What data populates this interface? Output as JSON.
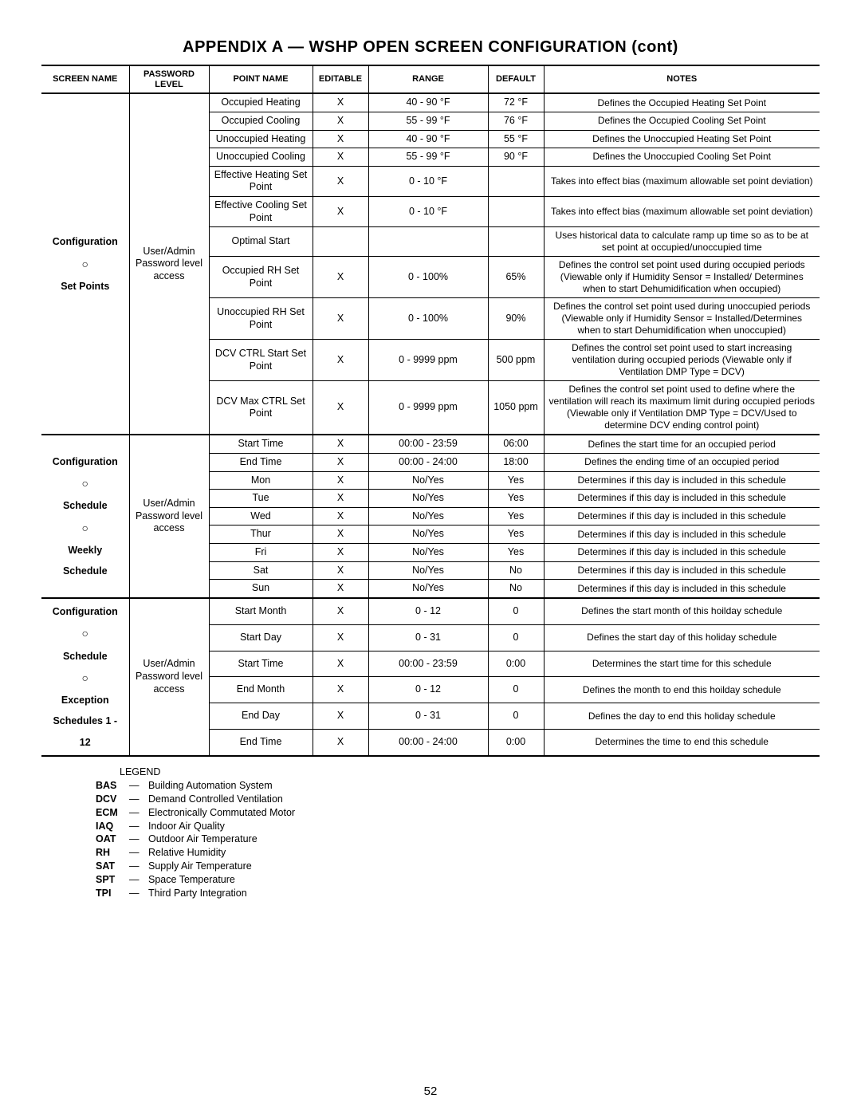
{
  "title": "APPENDIX A — WSHP OPEN SCREEN CONFIGURATION (cont)",
  "page_number": "52",
  "columns": {
    "screen_name": "Screen Name",
    "password_level": "Password Level",
    "point_name": "Point Name",
    "editable": "Editable",
    "range": "Range",
    "default": "Default",
    "notes": "Notes"
  },
  "degree_unit": "°F",
  "groups": [
    {
      "id": "setpoints",
      "screen_name_lines": [
        "Configuration",
        "○",
        "Set Points"
      ],
      "password_level": "User/Admin Password level access",
      "rows": [
        {
          "point_name": "Occupied Heating",
          "editable": "X",
          "range": "40 - 90  °F",
          "default": "72  °F",
          "notes": "Defines the Occupied Heating Set Point"
        },
        {
          "point_name": "Occupied Cooling",
          "editable": "X",
          "range": "55 - 99  °F",
          "default": "76  °F",
          "notes": "Defines the Occupied Cooling Set Point"
        },
        {
          "point_name": "Unoccupied Heating",
          "editable": "X",
          "range": "40 - 90  °F",
          "default": "55  °F",
          "notes": "Defines the Unoccupied Heating Set Point"
        },
        {
          "point_name": "Unoccupied Cooling",
          "editable": "X",
          "range": "55 - 99  °F",
          "default": "90  °F",
          "notes": "Defines the Unoccupied Cooling Set Point"
        },
        {
          "point_name": "Effective Heating Set Point",
          "editable": "X",
          "range": "0 - 10  °F",
          "default": "",
          "notes": "Takes into effect bias (maximum allowable set point deviation)"
        },
        {
          "point_name": "Effective Cooling Set Point",
          "editable": "X",
          "range": "0 - 10  °F",
          "default": "",
          "notes": "Takes into effect bias (maximum allowable set point deviation)"
        },
        {
          "point_name": "Optimal Start",
          "editable": "",
          "range": "",
          "default": "",
          "notes": "Uses historical data to calculate ramp up time so as to be at set point at occupied/unoccupied time"
        },
        {
          "point_name": "Occupied RH Set Point",
          "editable": "X",
          "range": "0 - 100%",
          "default": "65%",
          "notes": "Defines the control set point used during occupied periods (Viewable only if Humidity Sensor = Installed/ Determines when to start Dehumidification when occupied)"
        },
        {
          "point_name": "Unoccupied RH Set Point",
          "editable": "X",
          "range": "0 - 100%",
          "default": "90%",
          "notes": "Defines the control set point used during unoccupied periods (Viewable only if Humidity Sensor = Installed/Determines when to start Dehumidification when unoccupied)"
        },
        {
          "point_name": "DCV CTRL Start Set Point",
          "editable": "X",
          "range": "0 - 9999 ppm",
          "default": "500 ppm",
          "notes": "Defines the control set point used to start increasing ventilation during occupied periods (Viewable only if Ventilation DMP Type = DCV)"
        },
        {
          "point_name": "DCV Max CTRL Set Point",
          "editable": "X",
          "range": "0 - 9999 ppm",
          "default": "1050 ppm",
          "notes": "Defines the control set point used to define where the ventilation will reach its maximum limit during occupied periods (Viewable only if Ventilation DMP Type = DCV/Used to determine DCV ending control point)"
        }
      ]
    },
    {
      "id": "weekly",
      "screen_name_lines": [
        "Configuration",
        "○",
        "Schedule",
        "○",
        "Weekly Schedule"
      ],
      "password_level": "User/Admin Password level access",
      "rows": [
        {
          "point_name": "Start Time",
          "editable": "X",
          "range": "00:00 - 23:59",
          "default": "06:00",
          "notes": "Defines the start time for an occupied period"
        },
        {
          "point_name": "End Time",
          "editable": "X",
          "range": "00:00 - 24:00",
          "default": "18:00",
          "notes": "Defines the ending time of an occupied period"
        },
        {
          "point_name": "Mon",
          "editable": "X",
          "range": "No/Yes",
          "default": "Yes",
          "notes": "Determines if this day is included in this schedule"
        },
        {
          "point_name": "Tue",
          "editable": "X",
          "range": "No/Yes",
          "default": "Yes",
          "notes": "Determines if this day is included in this schedule"
        },
        {
          "point_name": "Wed",
          "editable": "X",
          "range": "No/Yes",
          "default": "Yes",
          "notes": "Determines if this day is included in this schedule"
        },
        {
          "point_name": "Thur",
          "editable": "X",
          "range": "No/Yes",
          "default": "Yes",
          "notes": "Determines if this day is included in this schedule"
        },
        {
          "point_name": "Fri",
          "editable": "X",
          "range": "No/Yes",
          "default": "Yes",
          "notes": "Determines if this day is included in this schedule"
        },
        {
          "point_name": "Sat",
          "editable": "X",
          "range": "No/Yes",
          "default": "No",
          "notes": "Determines if this day is included in this schedule"
        },
        {
          "point_name": "Sun",
          "editable": "X",
          "range": "No/Yes",
          "default": "No",
          "notes": "Determines if this day is included in this schedule"
        }
      ]
    },
    {
      "id": "exception",
      "screen_name_lines": [
        "Configuration",
        "○",
        "Schedule",
        "○",
        "Exception",
        "Schedules 1 - 12"
      ],
      "password_level": "User/Admin Password level access",
      "rows": [
        {
          "point_name": "Start Month",
          "editable": "X",
          "range": "0 - 12",
          "default": "0",
          "notes": "Defines the start month of this hoilday schedule"
        },
        {
          "point_name": "Start Day",
          "editable": "X",
          "range": "0 - 31",
          "default": "0",
          "notes": "Defines the start day of this holiday schedule"
        },
        {
          "point_name": "Start Time",
          "editable": "X",
          "range": "00:00 - 23:59",
          "default": "0:00",
          "notes": "Determines the start time for this schedule"
        },
        {
          "point_name": "End Month",
          "editable": "X",
          "range": "0 - 12",
          "default": "0",
          "notes": "Defines the month to end this hoilday schedule"
        },
        {
          "point_name": "End Day",
          "editable": "X",
          "range": "0 - 31",
          "default": "0",
          "notes": "Defines the day to end this holiday schedule"
        },
        {
          "point_name": "End Time",
          "editable": "X",
          "range": "00:00 - 24:00",
          "default": "0:00",
          "notes": "Determines the time to end this schedule"
        }
      ]
    }
  ],
  "legend_title": "LEGEND",
  "legend": [
    {
      "abbr": "BAS",
      "dash": "—",
      "def": "Building Automation System"
    },
    {
      "abbr": "DCV",
      "dash": "—",
      "def": "Demand Controlled Ventilation"
    },
    {
      "abbr": "ECM",
      "dash": "—",
      "def": "Electronically Commutated Motor"
    },
    {
      "abbr": "IAQ",
      "dash": "—",
      "def": "Indoor Air Quality"
    },
    {
      "abbr": "OAT",
      "dash": "—",
      "def": "Outdoor Air Temperature"
    },
    {
      "abbr": "RH",
      "dash": "—",
      "def": "Relative Humidity"
    },
    {
      "abbr": "SAT",
      "dash": "—",
      "def": "Supply Air Temperature"
    },
    {
      "abbr": "SPT",
      "dash": "—",
      "def": "Space Temperature"
    },
    {
      "abbr": "TPI",
      "dash": "—",
      "def": "Third Party Integration"
    }
  ]
}
